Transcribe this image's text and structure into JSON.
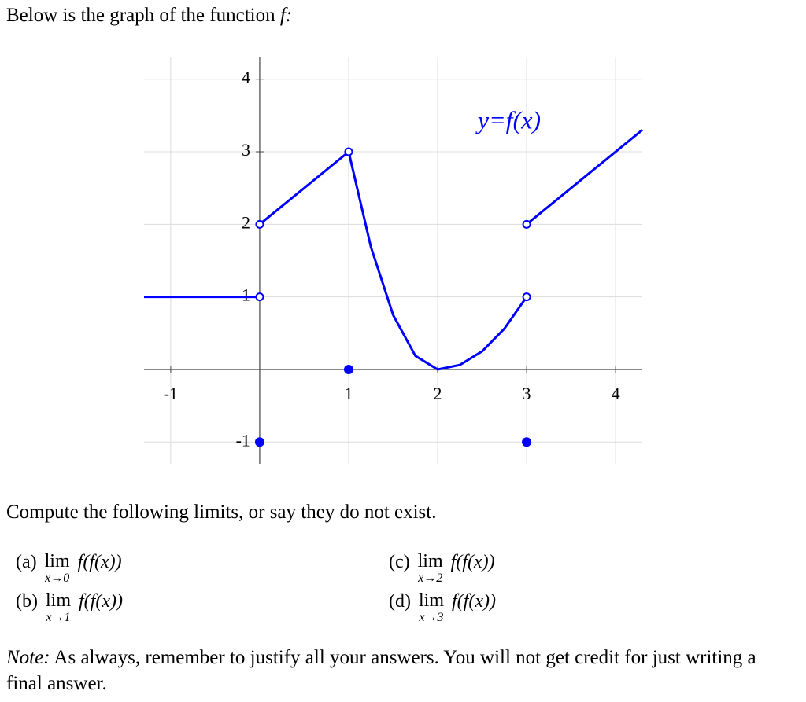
{
  "intro_text": "Below is the graph of the function",
  "intro_var": "f:",
  "chart_data": {
    "type": "line",
    "annotation": "y=f(x)",
    "x": [
      -1.3,
      0,
      0,
      0,
      1,
      1,
      1,
      1.25,
      1.5,
      1.75,
      2,
      2.25,
      2.5,
      2.75,
      3,
      3,
      3,
      4.3
    ],
    "series": [
      {
        "color": "#0000ff",
        "values": [
          1,
          1,
          null,
          2,
          3,
          null,
          3,
          1.6875,
          0.75,
          0.1875,
          0,
          0.0625,
          0.25,
          0.5625,
          1,
          null,
          2,
          3.3
        ]
      }
    ],
    "closed_points": {
      "x": [
        0,
        1,
        3
      ],
      "y": [
        -1,
        0,
        -1
      ]
    },
    "open_points": {
      "x": [
        0,
        0,
        1,
        3,
        3
      ],
      "y": [
        1,
        2,
        3,
        1,
        2
      ]
    },
    "xlim": [
      -1.3,
      4.3
    ],
    "ylim": [
      -1.3,
      4.3
    ],
    "xticks": [
      -1,
      1,
      2,
      3,
      4
    ],
    "yticks": [
      -1,
      1,
      2,
      3,
      4
    ],
    "grid": true
  },
  "prompt": "Compute the following limits, or say they do not exist.",
  "items": [
    {
      "label": "(a)",
      "lim": "lim",
      "sub": "x→0",
      "expr": "f(f(x))"
    },
    {
      "label": "(b)",
      "lim": "lim",
      "sub": "x→1",
      "expr": "f(f(x))"
    },
    {
      "label": "(c)",
      "lim": "lim",
      "sub": "x→2",
      "expr": "f(f(x))"
    },
    {
      "label": "(d)",
      "lim": "lim",
      "sub": "x→3",
      "expr": "f(f(x))"
    }
  ],
  "note_label": "Note:",
  "note_text": "As always, remember to justify all your answers. You will not get credit for just writing a final answer."
}
